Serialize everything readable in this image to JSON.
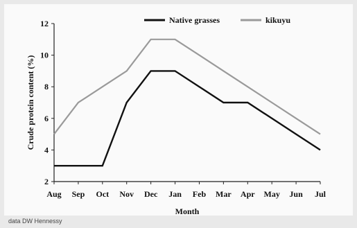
{
  "chart_data": {
    "type": "line",
    "categories": [
      "Aug",
      "Sep",
      "Oct",
      "Nov",
      "Dec",
      "Jan",
      "Feb",
      "Mar",
      "Apr",
      "May",
      "Jun",
      "Jul"
    ],
    "series": [
      {
        "name": "Native grasses",
        "values": [
          3,
          3,
          3,
          7,
          9,
          9,
          8,
          7,
          7,
          6,
          5,
          4
        ],
        "color": "#111111"
      },
      {
        "name": "kikuyu",
        "values": [
          5,
          7,
          8,
          9,
          11,
          11,
          10,
          9,
          8,
          7,
          6,
          5
        ],
        "color": "#9a9a9a"
      }
    ],
    "xlabel": "Month",
    "ylabel": "Crude protein content (%)",
    "ylim": [
      2,
      12
    ],
    "yticks": [
      2,
      4,
      6,
      8,
      10,
      12
    ],
    "grid": false,
    "legend": "top"
  },
  "source_note": "data DW Hennessy"
}
